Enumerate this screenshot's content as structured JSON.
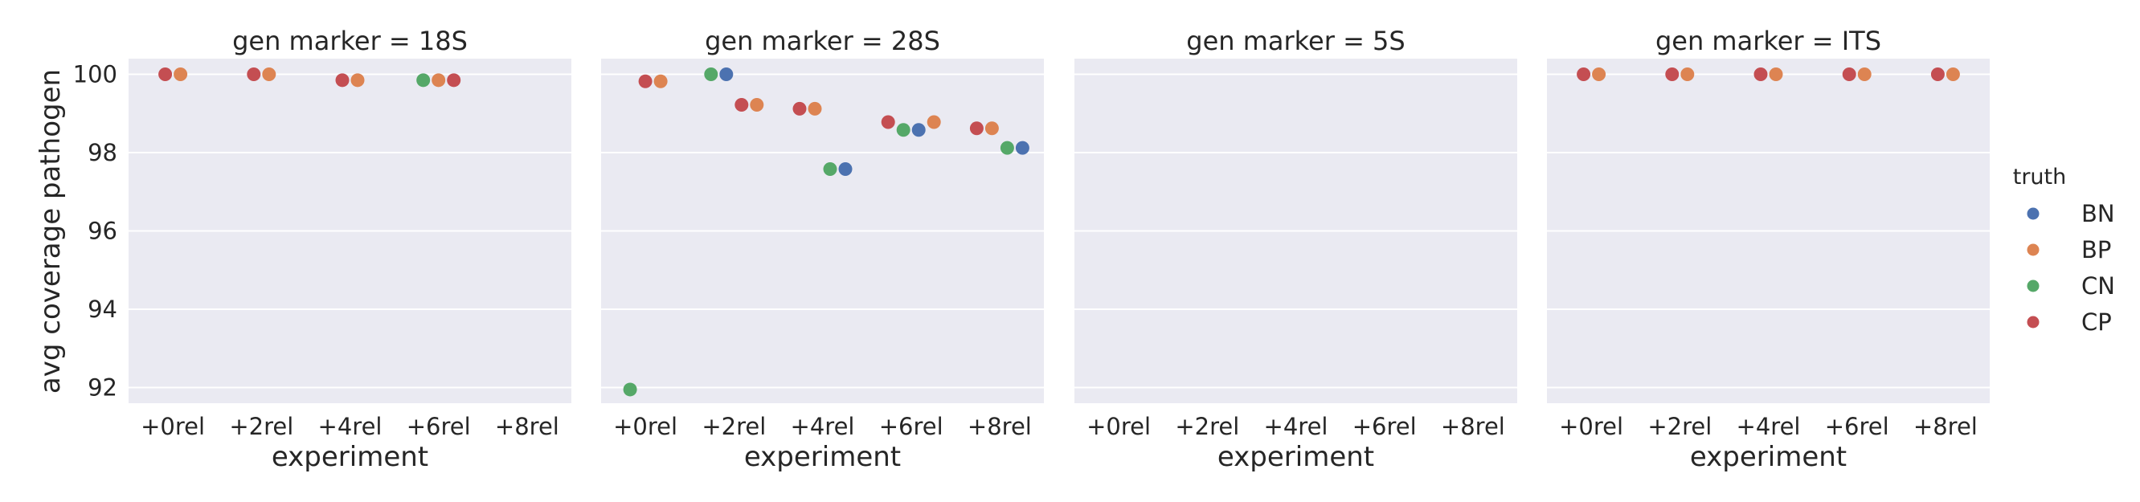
{
  "chart_data": {
    "type": "scatter",
    "subtype": "stripplot-facets",
    "facet_variable": "gen marker",
    "ylabel": "avg coverage pathogen",
    "xlabel": "experiment",
    "categories": [
      "+0rel",
      "+2rel",
      "+4rel",
      "+6rel",
      "+8rel"
    ],
    "ylim": [
      91.6,
      100.4
    ],
    "yticks": [
      92,
      94,
      96,
      98,
      100
    ],
    "grid": true,
    "legend": {
      "title": "truth",
      "placement": "right",
      "entries": [
        "BN",
        "BP",
        "CN",
        "CP"
      ],
      "colors": {
        "BN": "#4c72b0",
        "BP": "#dd8452",
        "CN": "#55a868",
        "CP": "#c44e52"
      }
    },
    "background": "#eaeaf2",
    "panels": [
      {
        "title": "gen marker = 18S",
        "points": [
          {
            "x": "+0rel",
            "truth": "CP",
            "y": 100.0
          },
          {
            "x": "+0rel",
            "truth": "BP",
            "y": 100.0
          },
          {
            "x": "+2rel",
            "truth": "CP",
            "y": 100.0
          },
          {
            "x": "+2rel",
            "truth": "BP",
            "y": 100.0
          },
          {
            "x": "+4rel",
            "truth": "CP",
            "y": 99.85
          },
          {
            "x": "+4rel",
            "truth": "BP",
            "y": 99.85
          },
          {
            "x": "+6rel",
            "truth": "CN",
            "y": 99.85
          },
          {
            "x": "+6rel",
            "truth": "BP",
            "y": 99.85
          },
          {
            "x": "+6rel",
            "truth": "CP",
            "y": 99.85
          }
        ]
      },
      {
        "title": "gen marker = 28S",
        "points": [
          {
            "x": "+0rel",
            "truth": "CN",
            "y": 91.95
          },
          {
            "x": "+0rel",
            "truth": "CP",
            "y": 99.82
          },
          {
            "x": "+0rel",
            "truth": "BP",
            "y": 99.82
          },
          {
            "x": "+2rel",
            "truth": "CN",
            "y": 100.0
          },
          {
            "x": "+2rel",
            "truth": "BN",
            "y": 100.0
          },
          {
            "x": "+2rel",
            "truth": "CP",
            "y": 99.22
          },
          {
            "x": "+2rel",
            "truth": "BP",
            "y": 99.22
          },
          {
            "x": "+4rel",
            "truth": "CP",
            "y": 99.12
          },
          {
            "x": "+4rel",
            "truth": "BP",
            "y": 99.12
          },
          {
            "x": "+4rel",
            "truth": "CN",
            "y": 97.58
          },
          {
            "x": "+4rel",
            "truth": "BN",
            "y": 97.58
          },
          {
            "x": "+6rel",
            "truth": "CP",
            "y": 98.78
          },
          {
            "x": "+6rel",
            "truth": "CN",
            "y": 98.58
          },
          {
            "x": "+6rel",
            "truth": "BN",
            "y": 98.58
          },
          {
            "x": "+6rel",
            "truth": "BP",
            "y": 98.78
          },
          {
            "x": "+8rel",
            "truth": "CP",
            "y": 98.62
          },
          {
            "x": "+8rel",
            "truth": "BP",
            "y": 98.62
          },
          {
            "x": "+8rel",
            "truth": "CN",
            "y": 98.12
          },
          {
            "x": "+8rel",
            "truth": "BN",
            "y": 98.12
          }
        ]
      },
      {
        "title": "gen marker = 5S",
        "points": []
      },
      {
        "title": "gen marker = ITS",
        "points": [
          {
            "x": "+0rel",
            "truth": "CP",
            "y": 100.0
          },
          {
            "x": "+0rel",
            "truth": "BP",
            "y": 100.0
          },
          {
            "x": "+2rel",
            "truth": "CP",
            "y": 100.0
          },
          {
            "x": "+2rel",
            "truth": "BP",
            "y": 100.0
          },
          {
            "x": "+4rel",
            "truth": "CP",
            "y": 100.0
          },
          {
            "x": "+4rel",
            "truth": "BP",
            "y": 100.0
          },
          {
            "x": "+6rel",
            "truth": "CP",
            "y": 100.0
          },
          {
            "x": "+6rel",
            "truth": "BP",
            "y": 100.0
          },
          {
            "x": "+8rel",
            "truth": "CP",
            "y": 100.0
          },
          {
            "x": "+8rel",
            "truth": "BP",
            "y": 100.0
          }
        ]
      }
    ]
  }
}
